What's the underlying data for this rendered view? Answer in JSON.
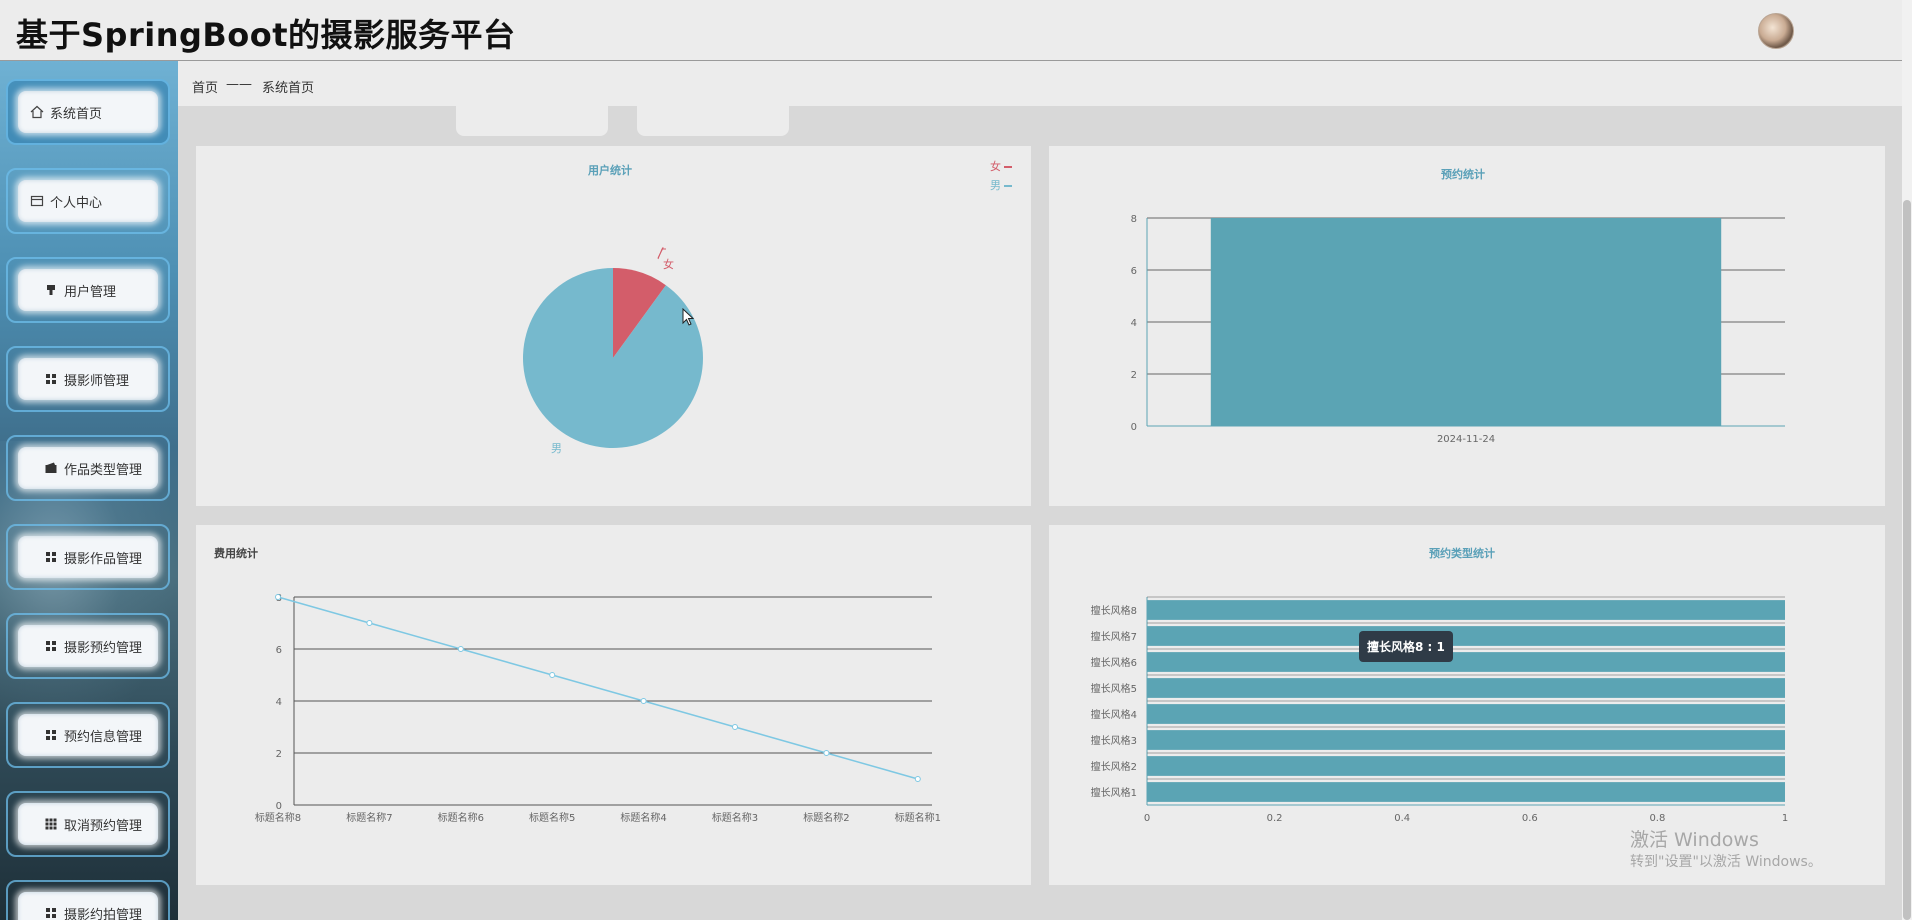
{
  "app": {
    "title": "基于SpringBoot的摄影服务平台"
  },
  "breadcrumb": {
    "home": "首页",
    "separator": "——",
    "current": "系统首页"
  },
  "sidebar": {
    "items": [
      {
        "label": "系统首页",
        "icon": "home-icon"
      },
      {
        "label": "个人中心",
        "icon": "card-icon"
      },
      {
        "label": "用户管理",
        "icon": "stamp-icon"
      },
      {
        "label": "摄影师管理",
        "icon": "grid-icon"
      },
      {
        "label": "作品类型管理",
        "icon": "wallet-icon"
      },
      {
        "label": "摄影作品管理",
        "icon": "grid-icon"
      },
      {
        "label": "摄影预约管理",
        "icon": "grid-icon"
      },
      {
        "label": "预约信息管理",
        "icon": "grid-icon"
      },
      {
        "label": "取消预约管理",
        "icon": "grid-9-icon"
      },
      {
        "label": "摄影约拍管理",
        "icon": "grid-icon"
      }
    ]
  },
  "colors": {
    "accent": "#5ba4b4",
    "pie_female": "#d35d6a",
    "pie_male": "#76b9cd",
    "line": "#7ec8e3"
  },
  "chart_data": [
    {
      "type": "pie",
      "title": "用户统计",
      "legend": [
        "女",
        "男"
      ],
      "legend_position": "top-right",
      "slices": [
        {
          "name": "女",
          "value": 1
        },
        {
          "name": "男",
          "value": 9
        }
      ],
      "labels": {
        "female": "女",
        "male": "男"
      }
    },
    {
      "type": "bar",
      "title": "预约统计",
      "categories": [
        "2024-11-24"
      ],
      "values": [
        8
      ],
      "ylim": [
        0,
        8
      ],
      "yticks": [
        "0",
        "2",
        "4",
        "6",
        "8"
      ],
      "grid": true
    },
    {
      "type": "line",
      "title": "费用统计",
      "categories": [
        "标题名称8",
        "标题名称7",
        "标题名称6",
        "标题名称5",
        "标题名称4",
        "标题名称3",
        "标题名称2",
        "标题名称1"
      ],
      "values": [
        8,
        7,
        6,
        5,
        4,
        3,
        2,
        1
      ],
      "ylim": [
        0,
        8
      ],
      "yticks": [
        "0",
        "2",
        "4",
        "6",
        "8"
      ],
      "grid": true
    },
    {
      "type": "bar",
      "orientation": "horizontal",
      "title": "预约类型统计",
      "categories": [
        "擅长风格8",
        "擅长风格7",
        "擅长风格6",
        "擅长风格5",
        "擅长风格4",
        "擅长风格3",
        "擅长风格2",
        "擅长风格1"
      ],
      "values": [
        1,
        1,
        1,
        1,
        1,
        1,
        1,
        1
      ],
      "xlim": [
        0,
        1
      ],
      "xticks": [
        "0",
        "0.2",
        "0.4",
        "0.6",
        "0.8",
        "1"
      ],
      "tooltip": "擅长风格8 : 1"
    }
  ],
  "watermark": {
    "line1": "激活 Windows",
    "line2": "转到\"设置\"以激活 Windows。"
  }
}
